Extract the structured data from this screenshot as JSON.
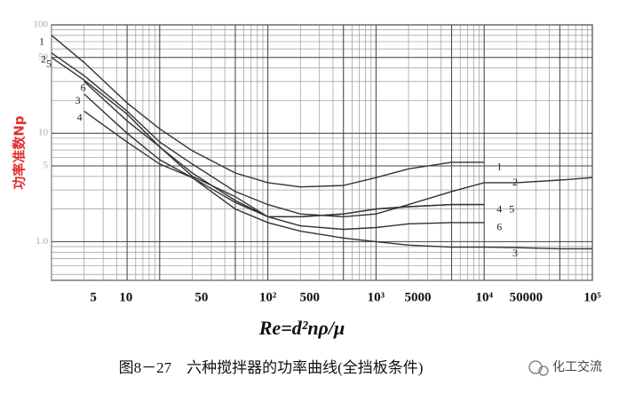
{
  "chart_data": {
    "type": "line",
    "y_label": "功率准数Np",
    "x_label": "Re=d²nρ/μ",
    "caption": "图8－27　六种搅拌器的功率曲线(全挡板条件)",
    "watermark": "化工交流",
    "x": [
      1,
      2,
      5,
      10,
      20,
      50,
      100,
      200,
      500,
      1000,
      2000,
      5000,
      10000,
      20000,
      50000,
      100000
    ],
    "log_x": true,
    "log_y": true,
    "grid": true,
    "minor_grid": true,
    "xlim": [
      1,
      100000
    ],
    "ylim": [
      0.44,
      100
    ],
    "xticks": [
      5,
      10,
      50,
      {
        "value": 100,
        "label": "10²"
      },
      500,
      {
        "value": 1000,
        "label": "10³"
      },
      5000,
      {
        "value": 10000,
        "label": "10⁴"
      },
      50000,
      {
        "value": 100000,
        "label": "10⁵"
      }
    ],
    "yticks": [
      100,
      50,
      10,
      5,
      {
        "value": 1,
        "label": "1.0"
      }
    ],
    "series": [
      {
        "name": "1",
        "color": "#333333",
        "values": [
          80,
          45,
          19,
          11,
          6.9,
          4.3,
          3.5,
          3.2,
          3.3,
          3.9,
          4.7,
          5.4,
          5.4,
          null,
          null,
          null
        ]
      },
      {
        "name": "2",
        "color": "#333333",
        "values": [
          55,
          34,
          16,
          8.3,
          5.2,
          2.9,
          2.2,
          1.8,
          1.7,
          1.8,
          2.2,
          2.9,
          3.5,
          3.5,
          3.7,
          3.9
        ]
      },
      {
        "name": "3",
        "color": "#333333",
        "values": [
          null,
          23,
          10,
          5.7,
          3.9,
          2.0,
          1.5,
          1.25,
          1.08,
          1.0,
          0.93,
          0.89,
          0.89,
          0.88,
          0.86,
          0.86
        ]
      },
      {
        "name": "4",
        "color": "#333333",
        "values": [
          null,
          16,
          8.3,
          5.2,
          3.9,
          2.3,
          1.7,
          1.7,
          1.8,
          2.0,
          2.1,
          2.2,
          2.2,
          null,
          null,
          null
        ]
      },
      {
        "name": "5",
        "color": "#333333",
        "values": [
          50,
          31,
          15,
          7.5,
          4.3,
          2.4,
          1.7,
          1.7,
          1.8,
          2.0,
          2.1,
          2.2,
          2.2,
          null,
          null,
          null
        ]
      },
      {
        "name": "6",
        "color": "#333333",
        "values": [
          null,
          30,
          13,
          7.5,
          4.0,
          2.6,
          1.7,
          1.4,
          1.3,
          1.35,
          1.46,
          1.5,
          1.5,
          null,
          null,
          null
        ]
      }
    ]
  }
}
